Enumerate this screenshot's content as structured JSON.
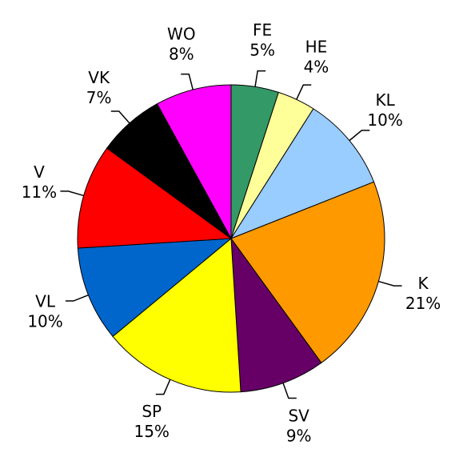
{
  "chart_data": {
    "type": "pie",
    "categories": [
      "FE",
      "HE",
      "KL",
      "K",
      "SV",
      "SP",
      "VL",
      "V",
      "VK",
      "WO"
    ],
    "values": [
      5,
      4,
      10,
      21,
      9,
      15,
      10,
      11,
      7,
      8
    ],
    "value_labels": [
      "5%",
      "4%",
      "10%",
      "21%",
      "9%",
      "15%",
      "10%",
      "11%",
      "7%",
      "8%"
    ],
    "colors": [
      "#339966",
      "#ffff99",
      "#99ccff",
      "#ff9900",
      "#660066",
      "#ffff00",
      "#0066cc",
      "#ff0000",
      "#000000",
      "#ff00ff"
    ]
  }
}
